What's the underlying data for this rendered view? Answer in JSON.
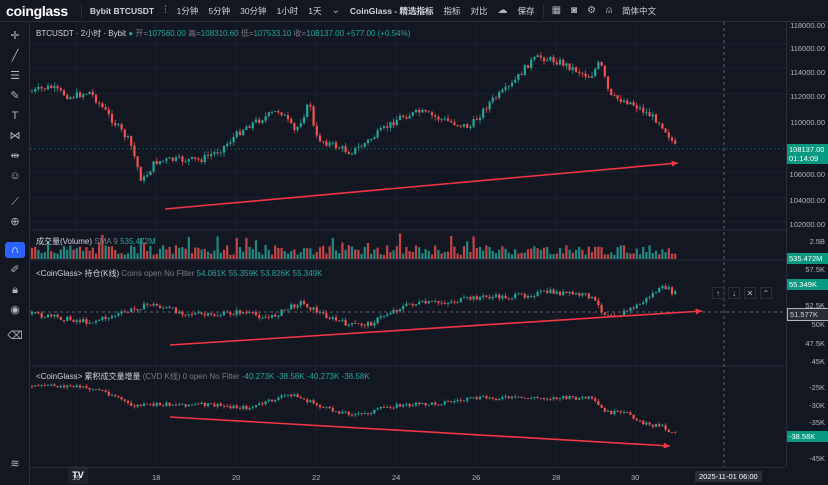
{
  "topbar": {
    "logo": "coinglass",
    "symbol": "Bybit BTCUSDT",
    "chart_type_icon": "candles-icon",
    "intervals": [
      "1分钟",
      "5分钟",
      "30分钟",
      "1小时",
      "1天"
    ],
    "brand_indicators": "CoinGlass - 精选指标",
    "indicators": "指标",
    "compare": "对比",
    "save": "保存",
    "language": "简体中文"
  },
  "main": {
    "title": "BTCUSDT · 2小时 · Bybit",
    "open_label": "开=",
    "open_value": "107560.00",
    "high_label": "高=",
    "high_value": "108310.60",
    "low_label": "低=",
    "low_value": "107533.10",
    "close_label": "收=",
    "close_value": "108137.00",
    "change": "+577.00 (+0.54%)",
    "price_ticks": [
      "118000.00",
      "116000.00",
      "114000.00",
      "112000.00",
      "110000.00",
      "108000.00",
      "106000.00",
      "104000.00",
      "102000.00"
    ],
    "last_price": "108137.00",
    "countdown": "01:14:09"
  },
  "volume": {
    "title": "成交量(Volume)",
    "sma": "SMA 9",
    "value": "535.472M",
    "tick": "2.5B",
    "last": "535.472M"
  },
  "oi": {
    "title": "<CoinGlass> 持仓(K线)",
    "sub": "Coins open No Filter",
    "values": [
      "54.061K",
      "55.359K",
      "53.826K",
      "55.349K"
    ],
    "ticks": [
      "57.5K",
      "52.5K",
      "50K",
      "47.5K",
      "45K"
    ],
    "last": "55.349K",
    "crosshair": "51.577K"
  },
  "cvd": {
    "title": "<CoinGlass> 累积成交量增量",
    "sub": "(CVD K线) 0 open No Filter",
    "values": [
      "-40.273K",
      "-38.58K",
      "-40.273K",
      "-38.58K"
    ],
    "ticks": [
      "-25K",
      "-30K",
      "-35K",
      "-40K",
      "-45K"
    ],
    "last": "-38.58K"
  },
  "time_axis": {
    "ticks": [
      "16",
      "18",
      "20",
      "22",
      "24",
      "26",
      "28",
      "30"
    ],
    "cursor": "2025-11-01    06:00"
  },
  "colors": {
    "bg": "#131722",
    "up": "#26a69a",
    "down": "#ef5350",
    "arrow": "#f23645",
    "accent": "#2962ff"
  },
  "tradingview_badge": "TV"
}
